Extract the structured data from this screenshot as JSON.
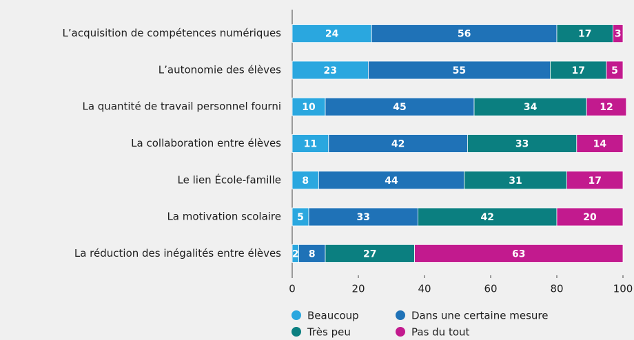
{
  "chart_data": {
    "type": "bar",
    "orientation": "horizontal",
    "stacked": true,
    "categories": [
      "L’acquisition de compétences numériques",
      "L’autonomie des élèves",
      "La quantité de travail personnel fourni",
      "La collaboration entre élèves",
      "Le lien École-famille",
      "La motivation scolaire",
      "La réduction des inégalités entre élèves"
    ],
    "series": [
      {
        "name": "Beaucoup",
        "color": "#2aa7df",
        "values": [
          24,
          23,
          10,
          11,
          8,
          5,
          2
        ]
      },
      {
        "name": "Dans une certaine mesure",
        "color": "#1f72b7",
        "values": [
          56,
          55,
          45,
          42,
          44,
          33,
          8
        ]
      },
      {
        "name": "Très peu",
        "color": "#0b7f80",
        "values": [
          17,
          17,
          34,
          33,
          31,
          42,
          27
        ]
      },
      {
        "name": "Pas du tout",
        "color": "#c21a8e",
        "values": [
          3,
          5,
          12,
          14,
          17,
          20,
          63
        ]
      }
    ],
    "xlim": [
      0,
      100
    ],
    "xticks": [
      0,
      20,
      40,
      60,
      80,
      100
    ],
    "grid": false
  }
}
